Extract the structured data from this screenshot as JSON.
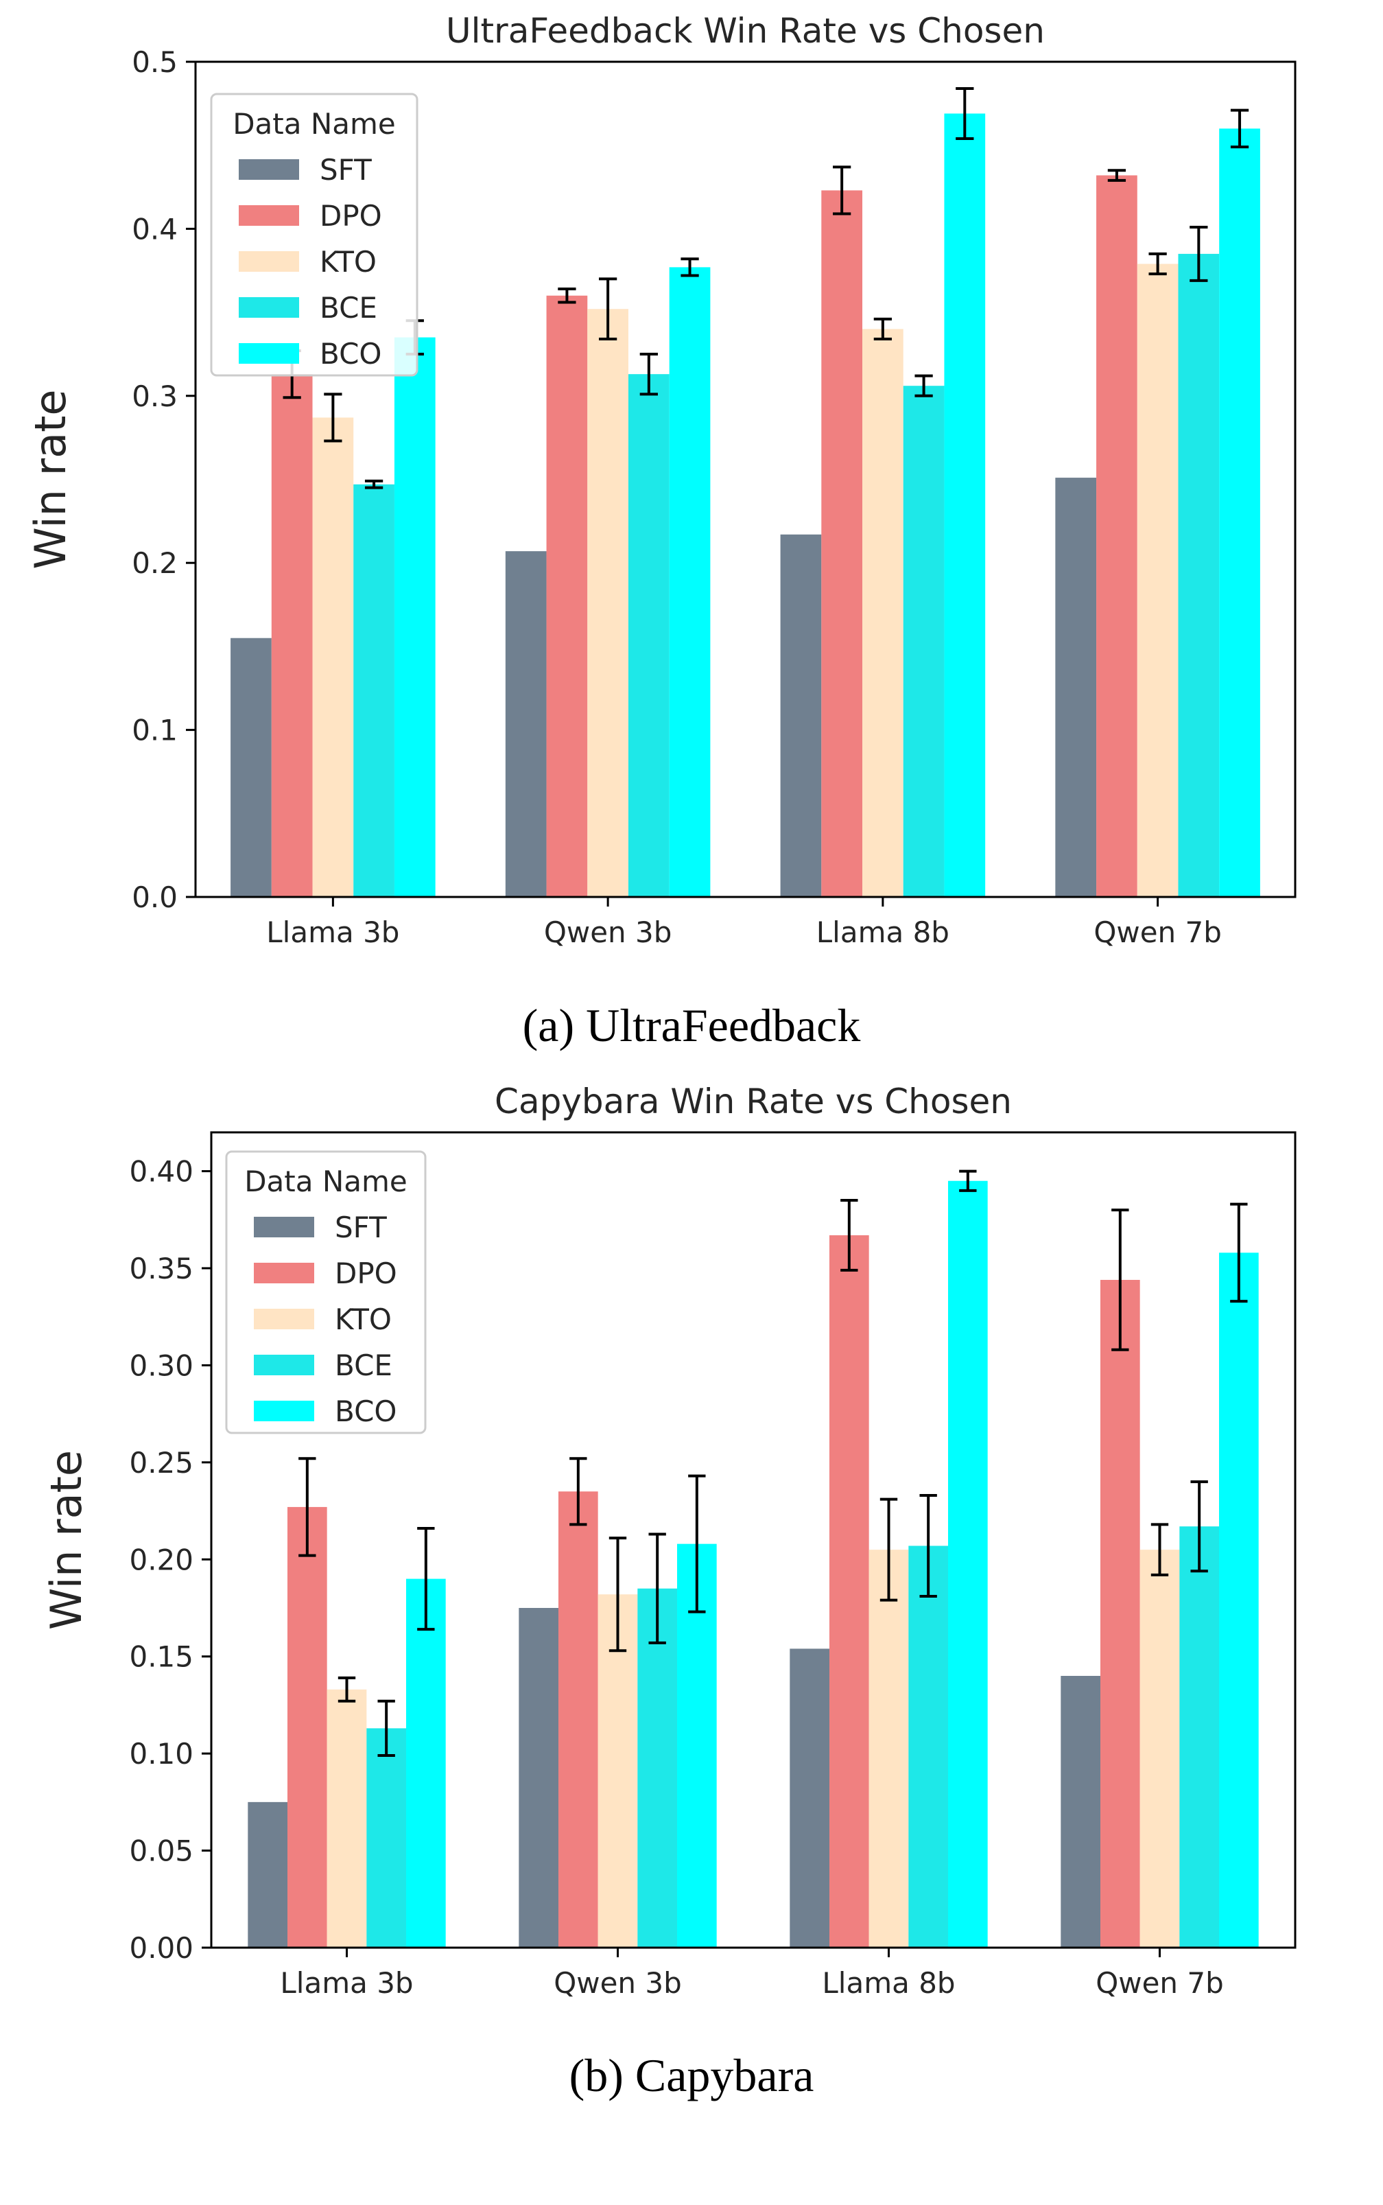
{
  "colors": {
    "SFT": "#708090",
    "DPO": "#f08080",
    "KTO": "#ffe4c4",
    "BCE": "#1ee8e8",
    "BCO": "#00ffff",
    "axis": "#000000",
    "error_bar": "#000000"
  },
  "chart_data": [
    {
      "type": "bar",
      "title": "UltraFeedback Win Rate vs Chosen",
      "xlabel": "",
      "ylabel": "Win rate",
      "caption": "(a) UltraFeedback",
      "ylim": [
        0,
        0.5
      ],
      "yticks": [
        "0.0",
        "0.1",
        "0.2",
        "0.3",
        "0.4",
        "0.5"
      ],
      "grid": false,
      "legend_title": "Data Name",
      "legend_position": "upper-left",
      "categories": [
        "Llama 3b",
        "Qwen 3b",
        "Llama 8b",
        "Qwen 7b"
      ],
      "series": [
        {
          "name": "SFT",
          "values": [
            0.155,
            0.207,
            0.217,
            0.251
          ],
          "errors": [
            0.0,
            0.0,
            0.0,
            0.0
          ]
        },
        {
          "name": "DPO",
          "values": [
            0.313,
            0.36,
            0.423,
            0.432
          ],
          "errors": [
            0.014,
            0.004,
            0.014,
            0.003
          ]
        },
        {
          "name": "KTO",
          "values": [
            0.287,
            0.352,
            0.34,
            0.379
          ],
          "errors": [
            0.014,
            0.018,
            0.006,
            0.006
          ]
        },
        {
          "name": "BCE",
          "values": [
            0.247,
            0.313,
            0.306,
            0.385
          ],
          "errors": [
            0.002,
            0.012,
            0.006,
            0.016
          ]
        },
        {
          "name": "BCO",
          "values": [
            0.335,
            0.377,
            0.469,
            0.46
          ],
          "errors": [
            0.01,
            0.005,
            0.015,
            0.011
          ]
        }
      ]
    },
    {
      "type": "bar",
      "title": "Capybara Win Rate vs Chosen",
      "xlabel": "",
      "ylabel": "Win rate",
      "caption": "(b) Capybara",
      "ylim": [
        0,
        0.42
      ],
      "yticks": [
        "0.00",
        "0.05",
        "0.10",
        "0.15",
        "0.20",
        "0.25",
        "0.30",
        "0.35",
        "0.40"
      ],
      "grid": false,
      "legend_title": "Data Name",
      "legend_position": "upper-left",
      "categories": [
        "Llama 3b",
        "Qwen 3b",
        "Llama 8b",
        "Qwen 7b"
      ],
      "series": [
        {
          "name": "SFT",
          "values": [
            0.075,
            0.175,
            0.154,
            0.14
          ],
          "errors": [
            0.0,
            0.0,
            0.0,
            0.0
          ]
        },
        {
          "name": "DPO",
          "values": [
            0.227,
            0.235,
            0.367,
            0.344
          ],
          "errors": [
            0.025,
            0.017,
            0.018,
            0.036
          ]
        },
        {
          "name": "KTO",
          "values": [
            0.133,
            0.182,
            0.205,
            0.205
          ],
          "errors": [
            0.006,
            0.029,
            0.026,
            0.013
          ]
        },
        {
          "name": "BCE",
          "values": [
            0.113,
            0.185,
            0.207,
            0.217
          ],
          "errors": [
            0.014,
            0.028,
            0.026,
            0.023
          ]
        },
        {
          "name": "BCO",
          "values": [
            0.19,
            0.208,
            0.395,
            0.358
          ],
          "errors": [
            0.026,
            0.035,
            0.005,
            0.025
          ]
        }
      ]
    }
  ]
}
